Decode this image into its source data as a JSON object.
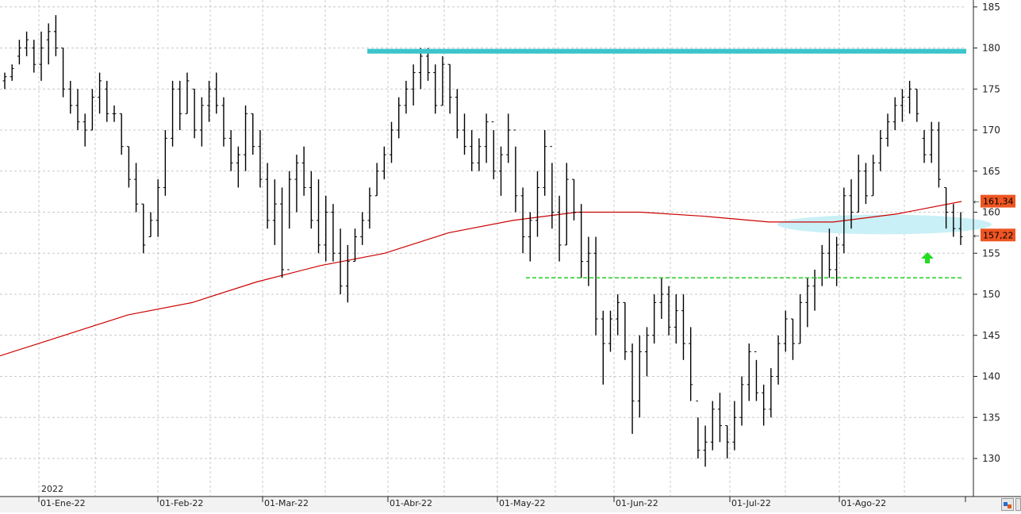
{
  "chart_data": {
    "type": "ohlc",
    "year_label": "2022",
    "x_tick_labels": [
      "01-Ene-22",
      "01-Feb-22",
      "01-Mar-22",
      "01-Abr-22",
      "01-May-22",
      "01-Jun-22",
      "01-Jul-22",
      "01-Ago-22"
    ],
    "y_tick_labels": [
      "185",
      "180",
      "175",
      "170",
      "165",
      "160",
      "155",
      "150",
      "145",
      "140",
      "135",
      "130"
    ],
    "y_axis_side": "right",
    "ylim": [
      125,
      185
    ],
    "grid": true,
    "price_badges": [
      {
        "label": "161,34",
        "value": 161.34
      },
      {
        "label": "157,22",
        "value": 157.22
      }
    ],
    "resistance_value": 179.6,
    "support_value": 152.0,
    "moving_average": {
      "color": "#cc0000",
      "values": [
        142.5,
        145,
        147.5,
        149,
        151.5,
        153.5,
        155,
        157.5,
        159,
        160,
        160,
        159.5,
        158.8,
        158.8,
        159.8,
        161.3
      ]
    },
    "highlight_zone": {
      "low": 157.5,
      "high": 159.5
    },
    "bars": [
      [
        177,
        175,
        176,
        176.5
      ],
      [
        178,
        176,
        176.5,
        177.5
      ],
      [
        181,
        178,
        179,
        180
      ],
      [
        182,
        179,
        180,
        181
      ],
      [
        181,
        177,
        180,
        178
      ],
      [
        182,
        176,
        178,
        180
      ],
      [
        183,
        178,
        181,
        182
      ],
      [
        184,
        179,
        182,
        180
      ],
      [
        180,
        174,
        180,
        175
      ],
      [
        176,
        172,
        175,
        173
      ],
      [
        175,
        170,
        173,
        171
      ],
      [
        172,
        168,
        171,
        170
      ],
      [
        175,
        170,
        170,
        174
      ],
      [
        177,
        172,
        174,
        176
      ],
      [
        176,
        171,
        175,
        172
      ],
      [
        173,
        171,
        172,
        172
      ],
      [
        172,
        167,
        172,
        168
      ],
      [
        168,
        163,
        168,
        164
      ],
      [
        166,
        160,
        164,
        161
      ],
      [
        161,
        155,
        161,
        156
      ],
      [
        160,
        157,
        157,
        159
      ],
      [
        164,
        157,
        159,
        163
      ],
      [
        170,
        162,
        163,
        169
      ],
      [
        176,
        168,
        169,
        175
      ],
      [
        176,
        170,
        175,
        172
      ],
      [
        177,
        172,
        172,
        176
      ],
      [
        175,
        169,
        175,
        170
      ],
      [
        174,
        168,
        170,
        173
      ],
      [
        176,
        171,
        173,
        175
      ],
      [
        177,
        172,
        175,
        173
      ],
      [
        174,
        168,
        173,
        169
      ],
      [
        170,
        165,
        169,
        166
      ],
      [
        168,
        163,
        166,
        167
      ],
      [
        173,
        165,
        167,
        172
      ],
      [
        172,
        167,
        172,
        168
      ],
      [
        170,
        163,
        168,
        164
      ],
      [
        166,
        158,
        164,
        159
      ],
      [
        164,
        156,
        159,
        161
      ],
      [
        163,
        152,
        161,
        153
      ],
      [
        165,
        158,
        153,
        164
      ],
      [
        167,
        160,
        164,
        166
      ],
      [
        168,
        162,
        166,
        163
      ],
      [
        165,
        158,
        163,
        159
      ],
      [
        164,
        155,
        159,
        156
      ],
      [
        162,
        154,
        156,
        160
      ],
      [
        161,
        154,
        160,
        155
      ],
      [
        158,
        150,
        155,
        151
      ],
      [
        156,
        149,
        151,
        154
      ],
      [
        158,
        154,
        154,
        157
      ],
      [
        160,
        156,
        157,
        159
      ],
      [
        163,
        158,
        159,
        162
      ],
      [
        166,
        162,
        162,
        165
      ],
      [
        168,
        164,
        165,
        167
      ],
      [
        171,
        166,
        167,
        170
      ],
      [
        174,
        169,
        170,
        173
      ],
      [
        176,
        172,
        173,
        175
      ],
      [
        178,
        173,
        175,
        177
      ],
      [
        180,
        175,
        177,
        179
      ],
      [
        180,
        176,
        179,
        177
      ],
      [
        178,
        172,
        177,
        173
      ],
      [
        179,
        173,
        173,
        178
      ],
      [
        178,
        172,
        178,
        174
      ],
      [
        175,
        169,
        174,
        170
      ],
      [
        172,
        167,
        170,
        168
      ],
      [
        170,
        165,
        168,
        166
      ],
      [
        169,
        165,
        166,
        168
      ],
      [
        172,
        166,
        168,
        171
      ],
      [
        170,
        164,
        171,
        165
      ],
      [
        168,
        162,
        165,
        167
      ],
      [
        172,
        166,
        167,
        170
      ],
      [
        168,
        160,
        170,
        162
      ],
      [
        163,
        155,
        162,
        157
      ],
      [
        160,
        154,
        157,
        159
      ],
      [
        165,
        157,
        159,
        163
      ],
      [
        170,
        162,
        163,
        168
      ],
      [
        166,
        158,
        168,
        160
      ],
      [
        162,
        154,
        160,
        156
      ],
      [
        166,
        156,
        156,
        164
      ],
      [
        164,
        159,
        164,
        160
      ],
      [
        161,
        152,
        160,
        154
      ],
      [
        157,
        151,
        154,
        155
      ],
      [
        157,
        145,
        155,
        147
      ],
      [
        148,
        139,
        147,
        144
      ],
      [
        148,
        143,
        144,
        147
      ],
      [
        150,
        145,
        147,
        149
      ],
      [
        149,
        142,
        149,
        143
      ],
      [
        144,
        133,
        143,
        137
      ],
      [
        145,
        135,
        137,
        143
      ],
      [
        146,
        140,
        143,
        145
      ],
      [
        150,
        144,
        145,
        149
      ],
      [
        152,
        147,
        149,
        150
      ],
      [
        151,
        145,
        150,
        146
      ],
      [
        150,
        144,
        146,
        148
      ],
      [
        150,
        142,
        148,
        144
      ],
      [
        146,
        137,
        144,
        139
      ],
      [
        135,
        130,
        137,
        131
      ],
      [
        134,
        129,
        131,
        132
      ],
      [
        137,
        131,
        132,
        136
      ],
      [
        138,
        132,
        136,
        134
      ],
      [
        134,
        130,
        134,
        132
      ],
      [
        137,
        131,
        132,
        135
      ],
      [
        140,
        134,
        135,
        139
      ],
      [
        144,
        137,
        139,
        143
      ],
      [
        142,
        137,
        143,
        138
      ],
      [
        139,
        134,
        138,
        136
      ],
      [
        141,
        135,
        136,
        140
      ],
      [
        145,
        139,
        140,
        144
      ],
      [
        148,
        143,
        144,
        147
      ],
      [
        147,
        142,
        147,
        144
      ],
      [
        150,
        144,
        144,
        149
      ],
      [
        152,
        146,
        149,
        151
      ],
      [
        153,
        148,
        151,
        152
      ],
      [
        156,
        151,
        152,
        155
      ],
      [
        158,
        152,
        155,
        153
      ],
      [
        157,
        151,
        153,
        156
      ],
      [
        163,
        155,
        156,
        162
      ],
      [
        164,
        158,
        162,
        160
      ],
      [
        167,
        160,
        160,
        165
      ],
      [
        166,
        161,
        165,
        162
      ],
      [
        167,
        162,
        162,
        166
      ],
      [
        170,
        165,
        166,
        169
      ],
      [
        172,
        168,
        169,
        171
      ],
      [
        174,
        170,
        171,
        173
      ],
      [
        175,
        171,
        173,
        174
      ],
      [
        176,
        172,
        174,
        175
      ],
      [
        175,
        171,
        175,
        172
      ],
      [
        170,
        166,
        169,
        167
      ],
      [
        171,
        166,
        167,
        170
      ],
      [
        171,
        163,
        170,
        164
      ],
      [
        163,
        158,
        163,
        160
      ],
      [
        161,
        157,
        160,
        158
      ],
      [
        160,
        156,
        158,
        157
      ]
    ]
  }
}
